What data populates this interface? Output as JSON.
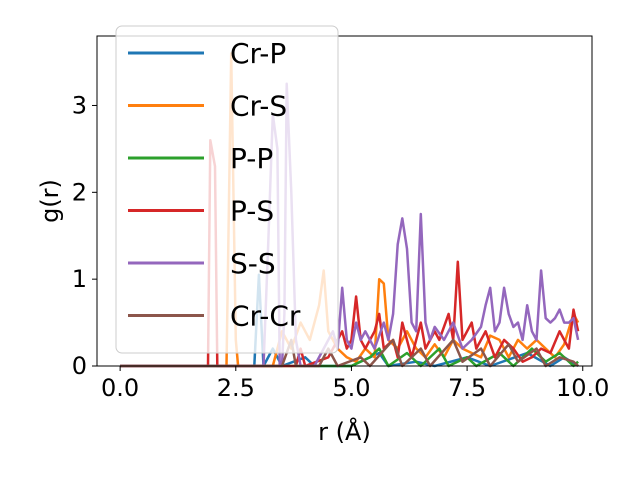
{
  "chart_data": {
    "type": "line",
    "title": "",
    "xlabel": "r (Å)",
    "ylabel": "g(r)",
    "xlim": [
      -0.5,
      10.2
    ],
    "ylim": [
      0,
      3.8
    ],
    "xticks": [
      0.0,
      2.5,
      5.0,
      7.5,
      10.0
    ],
    "xtick_labels": [
      "0.0",
      "2.5",
      "5.0",
      "7.5",
      "10.0"
    ],
    "yticks": [
      0,
      1,
      2,
      3
    ],
    "ytick_labels": [
      "0",
      "1",
      "2",
      "3"
    ],
    "grid": false,
    "legend_position": "top-left",
    "series": [
      {
        "name": "Cr-P",
        "color": "#1f77b4",
        "points": [
          [
            0,
            0
          ],
          [
            2.9,
            0
          ],
          [
            3.0,
            1.05
          ],
          [
            3.1,
            0
          ],
          [
            3.3,
            0.2
          ],
          [
            3.5,
            0
          ],
          [
            4.0,
            0.1
          ],
          [
            4.2,
            0
          ],
          [
            5.0,
            0
          ],
          [
            5.6,
            0.15
          ],
          [
            5.8,
            0
          ],
          [
            6.4,
            0.05
          ],
          [
            6.8,
            0
          ],
          [
            7.5,
            0.1
          ],
          [
            8.0,
            0
          ],
          [
            8.8,
            0.15
          ],
          [
            9.3,
            0
          ],
          [
            9.6,
            0.1
          ],
          [
            9.9,
            0
          ]
        ]
      },
      {
        "name": "Cr-S",
        "color": "#ff7f0e",
        "points": [
          [
            0,
            0
          ],
          [
            2.3,
            0
          ],
          [
            2.4,
            3.6
          ],
          [
            2.5,
            0.3
          ],
          [
            2.55,
            0
          ],
          [
            3.3,
            0
          ],
          [
            3.5,
            0.4
          ],
          [
            3.7,
            0.2
          ],
          [
            3.9,
            0.5
          ],
          [
            4.1,
            0.3
          ],
          [
            4.3,
            0.7
          ],
          [
            4.4,
            1.1
          ],
          [
            4.5,
            0.4
          ],
          [
            4.7,
            0.2
          ],
          [
            4.9,
            0.1
          ],
          [
            5.1,
            0.05
          ],
          [
            5.3,
            0.2
          ],
          [
            5.5,
            0.1
          ],
          [
            5.6,
            1.0
          ],
          [
            5.7,
            0.95
          ],
          [
            5.8,
            0.3
          ],
          [
            6.0,
            0.2
          ],
          [
            6.2,
            0.4
          ],
          [
            6.4,
            0.2
          ],
          [
            6.6,
            0.1
          ],
          [
            6.8,
            0.25
          ],
          [
            7.0,
            0.1
          ],
          [
            7.2,
            0.3
          ],
          [
            7.4,
            0.2
          ],
          [
            7.6,
            0.15
          ],
          [
            7.8,
            0.1
          ],
          [
            8.0,
            0.35
          ],
          [
            8.2,
            0.3
          ],
          [
            8.4,
            0.1
          ],
          [
            8.6,
            0.3
          ],
          [
            8.8,
            0.2
          ],
          [
            9.0,
            0.3
          ],
          [
            9.2,
            0.2
          ],
          [
            9.4,
            0.1
          ],
          [
            9.6,
            0.25
          ],
          [
            9.8,
            0.6
          ],
          [
            9.9,
            0.5
          ]
        ]
      },
      {
        "name": "P-P",
        "color": "#2ca02c",
        "points": [
          [
            0,
            0
          ],
          [
            5.0,
            0
          ],
          [
            5.4,
            0.1
          ],
          [
            5.6,
            0.2
          ],
          [
            5.8,
            0
          ],
          [
            6.2,
            0.15
          ],
          [
            6.5,
            0
          ],
          [
            6.9,
            0.2
          ],
          [
            7.1,
            0
          ],
          [
            7.5,
            0.1
          ],
          [
            7.7,
            0
          ],
          [
            8.2,
            0.15
          ],
          [
            8.5,
            0
          ],
          [
            8.9,
            0.2
          ],
          [
            9.2,
            0.05
          ],
          [
            9.5,
            0.15
          ],
          [
            9.8,
            0
          ],
          [
            9.9,
            0.05
          ]
        ]
      },
      {
        "name": "P-S",
        "color": "#d62728",
        "points": [
          [
            0,
            0
          ],
          [
            1.9,
            0
          ],
          [
            1.95,
            2.6
          ],
          [
            2.05,
            2.3
          ],
          [
            2.1,
            0
          ],
          [
            3.8,
            0
          ],
          [
            3.9,
            0.2
          ],
          [
            4.0,
            0
          ],
          [
            4.5,
            0.1
          ],
          [
            4.8,
            0.4
          ],
          [
            4.9,
            0.2
          ],
          [
            5.0,
            0.3
          ],
          [
            5.1,
            0.8
          ],
          [
            5.2,
            0.3
          ],
          [
            5.3,
            0.2
          ],
          [
            5.5,
            0.4
          ],
          [
            5.6,
            0.6
          ],
          [
            5.7,
            0.2
          ],
          [
            5.9,
            0.3
          ],
          [
            6.0,
            0.1
          ],
          [
            6.1,
            0.5
          ],
          [
            6.3,
            0.1
          ],
          [
            6.5,
            0.5
          ],
          [
            6.6,
            0.2
          ],
          [
            6.8,
            0.4
          ],
          [
            6.9,
            0.3
          ],
          [
            7.1,
            0.6
          ],
          [
            7.2,
            0.3
          ],
          [
            7.3,
            1.2
          ],
          [
            7.4,
            0.3
          ],
          [
            7.6,
            0.5
          ],
          [
            7.7,
            0.2
          ],
          [
            7.9,
            0.4
          ],
          [
            8.1,
            0.1
          ],
          [
            8.3,
            0.3
          ],
          [
            8.5,
            0.2
          ],
          [
            8.7,
            0.05
          ],
          [
            8.9,
            0.1
          ],
          [
            9.1,
            0.2
          ],
          [
            9.3,
            0.15
          ],
          [
            9.5,
            0.4
          ],
          [
            9.7,
            0.2
          ],
          [
            9.8,
            0.65
          ],
          [
            9.9,
            0.4
          ]
        ]
      },
      {
        "name": "S-S",
        "color": "#9467bd",
        "points": [
          [
            0,
            0
          ],
          [
            3.1,
            0
          ],
          [
            3.2,
            1.4
          ],
          [
            3.3,
            2.9
          ],
          [
            3.4,
            2.5
          ],
          [
            3.45,
            0
          ],
          [
            3.5,
            0
          ],
          [
            3.55,
            0.6
          ],
          [
            3.6,
            3.25
          ],
          [
            3.7,
            2.0
          ],
          [
            3.8,
            0.3
          ],
          [
            3.9,
            0
          ],
          [
            4.2,
            0
          ],
          [
            4.4,
            0.2
          ],
          [
            4.6,
            0.4
          ],
          [
            4.7,
            0.2
          ],
          [
            4.8,
            0.9
          ],
          [
            4.9,
            0.3
          ],
          [
            5.0,
            0.2
          ],
          [
            5.1,
            0.5
          ],
          [
            5.2,
            0.3
          ],
          [
            5.3,
            0.4
          ],
          [
            5.5,
            0.2
          ],
          [
            5.7,
            0.5
          ],
          [
            5.8,
            0.3
          ],
          [
            5.9,
            0.6
          ],
          [
            6.0,
            1.4
          ],
          [
            6.1,
            1.7
          ],
          [
            6.2,
            1.35
          ],
          [
            6.3,
            0.5
          ],
          [
            6.4,
            0.4
          ],
          [
            6.5,
            1.75
          ],
          [
            6.6,
            0.5
          ],
          [
            6.7,
            0.3
          ],
          [
            6.8,
            0.45
          ],
          [
            7.0,
            0.3
          ],
          [
            7.2,
            0.5
          ],
          [
            7.4,
            0.2
          ],
          [
            7.6,
            0.3
          ],
          [
            7.8,
            0.45
          ],
          [
            7.9,
            0.7
          ],
          [
            8.0,
            0.9
          ],
          [
            8.1,
            0.4
          ],
          [
            8.2,
            0.5
          ],
          [
            8.3,
            0.9
          ],
          [
            8.4,
            0.6
          ],
          [
            8.5,
            0.45
          ],
          [
            8.6,
            0.5
          ],
          [
            8.7,
            0.3
          ],
          [
            8.8,
            0.7
          ],
          [
            8.9,
            0.4
          ],
          [
            9.0,
            0.3
          ],
          [
            9.1,
            1.1
          ],
          [
            9.2,
            0.55
          ],
          [
            9.3,
            0.5
          ],
          [
            9.4,
            0.55
          ],
          [
            9.5,
            0.65
          ],
          [
            9.6,
            0.5
          ],
          [
            9.7,
            0.5
          ],
          [
            9.8,
            0.55
          ],
          [
            9.9,
            0.3
          ]
        ]
      },
      {
        "name": "Cr-Cr",
        "color": "#8c564b",
        "points": [
          [
            0,
            0
          ],
          [
            3.5,
            0
          ],
          [
            3.7,
            0.3
          ],
          [
            3.8,
            0
          ],
          [
            4.3,
            0
          ],
          [
            4.5,
            0.2
          ],
          [
            4.7,
            0
          ],
          [
            5.2,
            0.1
          ],
          [
            5.4,
            0
          ],
          [
            5.9,
            0.3
          ],
          [
            6.1,
            0
          ],
          [
            6.5,
            0.2
          ],
          [
            6.7,
            0
          ],
          [
            7.2,
            0.3
          ],
          [
            7.4,
            0.05
          ],
          [
            7.8,
            0.2
          ],
          [
            8.0,
            0
          ],
          [
            8.4,
            0.25
          ],
          [
            8.6,
            0.05
          ],
          [
            9.0,
            0.2
          ],
          [
            9.2,
            0
          ],
          [
            9.5,
            0.1
          ],
          [
            9.8,
            0.05
          ],
          [
            9.9,
            0
          ]
        ]
      }
    ]
  }
}
